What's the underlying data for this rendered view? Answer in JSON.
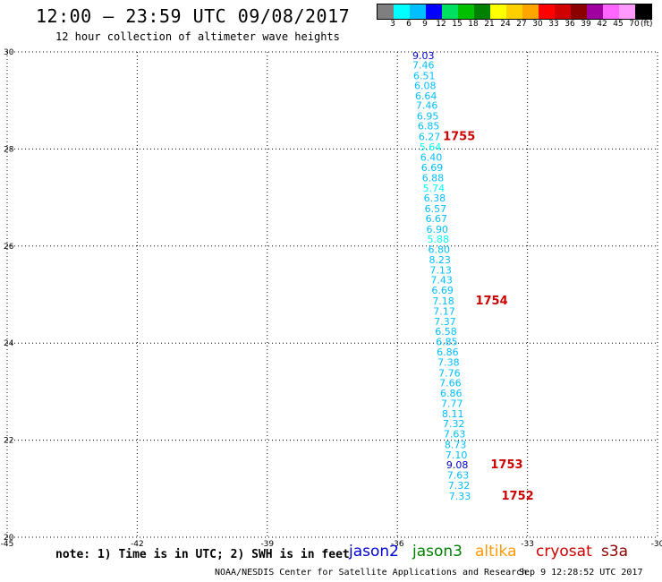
{
  "header": {
    "title": "12:00 – 23:59 UTC 09/08/2017",
    "subtitle": "12 hour collection of altimeter wave heights"
  },
  "color_scale": {
    "labels": [
      "3",
      "6",
      "9",
      "12",
      "15",
      "18",
      "21",
      "24",
      "27",
      "30",
      "33",
      "36",
      "39",
      "42",
      "45",
      "70"
    ],
    "unit": "(ft)",
    "colors": [
      "#7f7f7f",
      "#00ffff",
      "#00bfff",
      "#0000ff",
      "#00e060",
      "#00c000",
      "#008000",
      "#ffff00",
      "#ffd000",
      "#ffa500",
      "#ff0000",
      "#d00000",
      "#8b0000",
      "#a000a0",
      "#ff66ff",
      "#ff99ff",
      "#000000"
    ]
  },
  "footer": {
    "note": "note: 1) Time is in UTC; 2) SWH is in feet",
    "satellites": [
      {
        "name": "jason2",
        "color": "#0000cc"
      },
      {
        "name": "jason3",
        "color": "#008000"
      },
      {
        "name": "altika",
        "color": "#ff9900"
      },
      {
        "name": "cryosat",
        "color": "#cc0000"
      },
      {
        "name": "s3a",
        "color": "#8b0000"
      }
    ],
    "credit": "NOAA/NESDIS Center for Satellite Applications and Research",
    "timestamp": "Sep  9 12:28:52 UTC 2017"
  },
  "chart_data": {
    "type": "scatter",
    "xlim": [
      -45,
      -30
    ],
    "ylim": [
      20,
      30
    ],
    "x_ticks": [
      -45,
      -42,
      -39,
      -36,
      -33,
      -30
    ],
    "y_ticks": [
      20,
      22,
      24,
      26,
      28,
      30
    ],
    "grid": true,
    "points": [
      {
        "lon": -35.4,
        "lat": 29.93,
        "v": "9.03",
        "c": "#0000cc"
      },
      {
        "lon": -35.4,
        "lat": 29.73,
        "v": "7.46",
        "c": "#00bfff"
      },
      {
        "lon": -35.38,
        "lat": 29.51,
        "v": "6.51",
        "c": "#00bfff"
      },
      {
        "lon": -35.36,
        "lat": 29.31,
        "v": "6.08",
        "c": "#00bfff"
      },
      {
        "lon": -35.34,
        "lat": 29.1,
        "v": "6.64",
        "c": "#00bfff"
      },
      {
        "lon": -35.32,
        "lat": 28.9,
        "v": "7.46",
        "c": "#00bfff"
      },
      {
        "lon": -35.3,
        "lat": 28.68,
        "v": "6.95",
        "c": "#00bfff"
      },
      {
        "lon": -35.28,
        "lat": 28.48,
        "v": "6.85",
        "c": "#00bfff"
      },
      {
        "lon": -35.26,
        "lat": 28.26,
        "v": "6.27",
        "c": "#00bfff"
      },
      {
        "lon": -35.24,
        "lat": 28.04,
        "v": "5.64",
        "c": "#00ffff"
      },
      {
        "lon": -35.22,
        "lat": 27.83,
        "v": "6.40",
        "c": "#00bfff"
      },
      {
        "lon": -35.2,
        "lat": 27.62,
        "v": "6.69",
        "c": "#00bfff"
      },
      {
        "lon": -35.18,
        "lat": 27.41,
        "v": "6.88",
        "c": "#00bfff"
      },
      {
        "lon": -35.16,
        "lat": 27.2,
        "v": "5.74",
        "c": "#00ffff"
      },
      {
        "lon": -35.14,
        "lat": 26.99,
        "v": "6.38",
        "c": "#00bfff"
      },
      {
        "lon": -35.12,
        "lat": 26.77,
        "v": "6.57",
        "c": "#00bfff"
      },
      {
        "lon": -35.1,
        "lat": 26.57,
        "v": "6.67",
        "c": "#00bfff"
      },
      {
        "lon": -35.08,
        "lat": 26.35,
        "v": "6.90",
        "c": "#00bfff"
      },
      {
        "lon": -35.06,
        "lat": 26.14,
        "v": "5.88",
        "c": "#00ffff"
      },
      {
        "lon": -35.04,
        "lat": 25.93,
        "v": "6.80",
        "c": "#00bfff"
      },
      {
        "lon": -35.02,
        "lat": 25.72,
        "v": "8.23",
        "c": "#00bfff"
      },
      {
        "lon": -35.0,
        "lat": 25.51,
        "v": "7.13",
        "c": "#00bfff"
      },
      {
        "lon": -34.98,
        "lat": 25.3,
        "v": "7.43",
        "c": "#00bfff"
      },
      {
        "lon": -34.96,
        "lat": 25.09,
        "v": "6.69",
        "c": "#00bfff"
      },
      {
        "lon": -34.94,
        "lat": 24.87,
        "v": "7.18",
        "c": "#00bfff"
      },
      {
        "lon": -34.92,
        "lat": 24.66,
        "v": "7.17",
        "c": "#00bfff"
      },
      {
        "lon": -34.9,
        "lat": 24.45,
        "v": "7.37",
        "c": "#00bfff"
      },
      {
        "lon": -34.88,
        "lat": 24.24,
        "v": "6.58",
        "c": "#00bfff"
      },
      {
        "lon": -34.86,
        "lat": 24.03,
        "v": "6.85",
        "c": "#00bfff"
      },
      {
        "lon": -34.84,
        "lat": 23.82,
        "v": "6.86",
        "c": "#00bfff"
      },
      {
        "lon": -34.82,
        "lat": 23.61,
        "v": "7.38",
        "c": "#00bfff"
      },
      {
        "lon": -34.8,
        "lat": 23.39,
        "v": "7.76",
        "c": "#00bfff"
      },
      {
        "lon": -34.78,
        "lat": 23.18,
        "v": "7.66",
        "c": "#00bfff"
      },
      {
        "lon": -34.76,
        "lat": 22.97,
        "v": "6.86",
        "c": "#00bfff"
      },
      {
        "lon": -34.74,
        "lat": 22.76,
        "v": "7.77",
        "c": "#00bfff"
      },
      {
        "lon": -34.72,
        "lat": 22.55,
        "v": "8.11",
        "c": "#00bfff"
      },
      {
        "lon": -34.7,
        "lat": 22.34,
        "v": "7.32",
        "c": "#00bfff"
      },
      {
        "lon": -34.68,
        "lat": 22.13,
        "v": "7.63",
        "c": "#00bfff"
      },
      {
        "lon": -34.66,
        "lat": 21.91,
        "v": "8.73",
        "c": "#00bfff"
      },
      {
        "lon": -34.64,
        "lat": 21.7,
        "v": "7.10",
        "c": "#00bfff"
      },
      {
        "lon": -34.62,
        "lat": 21.49,
        "v": "9.08",
        "c": "#0000cc"
      },
      {
        "lon": -34.6,
        "lat": 21.28,
        "v": "7.63",
        "c": "#00bfff"
      },
      {
        "lon": -34.58,
        "lat": 21.07,
        "v": "7.32",
        "c": "#00bfff"
      },
      {
        "lon": -34.56,
        "lat": 20.85,
        "v": "7.33",
        "c": "#00bfff"
      }
    ],
    "time_labels": [
      {
        "lon": -34.95,
        "lat": 28.26,
        "text": "1755"
      },
      {
        "lon": -34.2,
        "lat": 24.87,
        "text": "1754"
      },
      {
        "lon": -33.85,
        "lat": 21.49,
        "text": "1753"
      },
      {
        "lon": -33.6,
        "lat": 20.85,
        "text": "1752"
      }
    ]
  }
}
